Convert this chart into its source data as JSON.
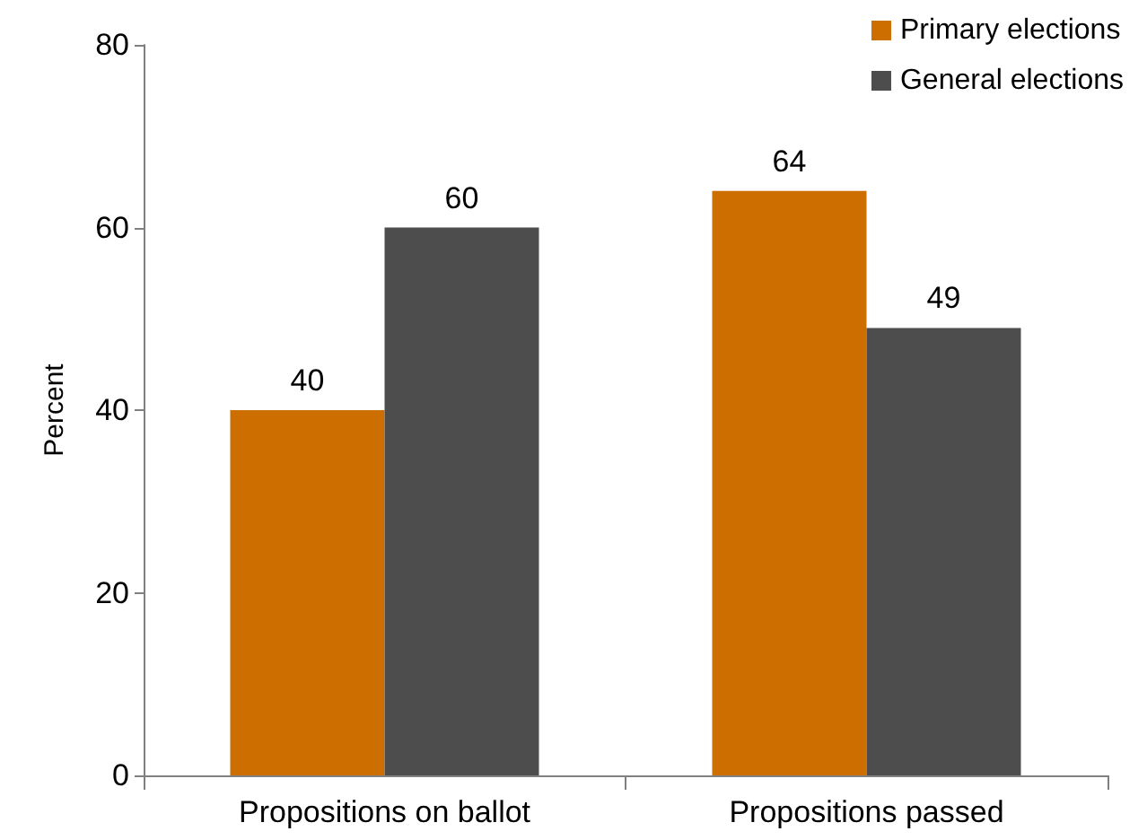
{
  "chart_data": {
    "type": "bar",
    "ylabel": "Percent",
    "categories": [
      "Propositions on ballot",
      "Propositions passed"
    ],
    "series": [
      {
        "name": "Primary elections",
        "color": "#cc6e00",
        "values": [
          40,
          64
        ]
      },
      {
        "name": "General elections",
        "color": "#4d4d4d",
        "values": [
          60,
          49
        ]
      }
    ],
    "ylim": [
      0,
      80
    ],
    "yticks": [
      0,
      20,
      40,
      60,
      80
    ],
    "grid": false,
    "legend": "top right",
    "data_labels": true
  }
}
